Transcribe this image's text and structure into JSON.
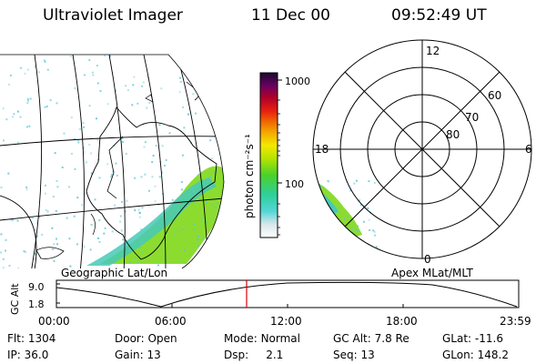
{
  "header": {
    "title": "Ultraviolet Imager",
    "date": "11 Dec 00",
    "time": "09:52:49 UT"
  },
  "colorbar": {
    "unit_label": "photon cm⁻²s⁻¹",
    "ticks": [
      "1000",
      "100"
    ]
  },
  "polar_plot": {
    "clock_labels": [
      "12",
      "18",
      "6",
      "0"
    ],
    "lat_labels": [
      "60",
      "70",
      "80"
    ]
  },
  "map_labels": {
    "left": "Geographic Lat/Lon",
    "right": "Apex MLat/MLT"
  },
  "altitude_plot": {
    "y_label": "GC Alt",
    "y_ticks": [
      "9.0",
      "1.8"
    ],
    "x_ticks": [
      "00:00",
      "06:00",
      "12:00",
      "18:00",
      "23:59"
    ],
    "marker_time": "09:52:49"
  },
  "info": [
    [
      {
        "k": "Flt:",
        "v": "1304"
      },
      {
        "k": "Door:",
        "v": "Open"
      },
      {
        "k": "Mode:",
        "v": "Normal"
      },
      {
        "k": "GC Alt:",
        "v": "7.8 Re"
      },
      {
        "k": "GLat:",
        "v": "-11.6"
      }
    ],
    [
      {
        "k": "IP:",
        "v": "36.0"
      },
      {
        "k": "Gain:",
        "v": "13"
      },
      {
        "k": "Dsp:",
        "v": "2.1"
      },
      {
        "k": "Seq:",
        "v": "13"
      },
      {
        "k": "GLon:",
        "v": "148.2"
      }
    ]
  ],
  "colors": {
    "marker": "#dd0000",
    "aurora_high": "#7fd81a",
    "aurora_low": "#3ecfc9",
    "speckle": "#5ec7d6"
  }
}
